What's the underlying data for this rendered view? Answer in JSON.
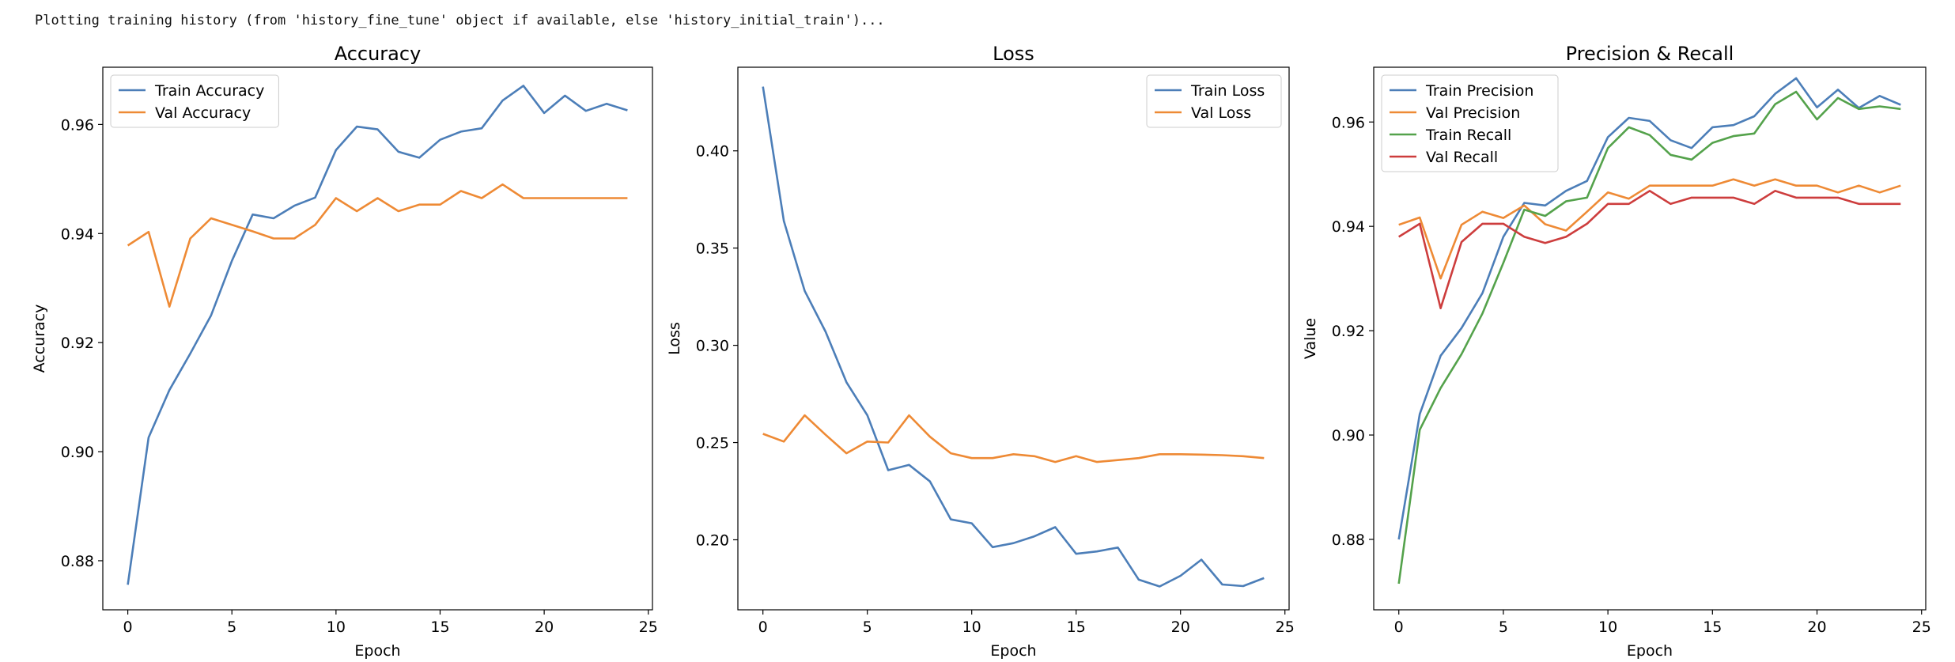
{
  "output_text": "Plotting training history (from 'history_fine_tune' object if available, else 'history_initial_train')...",
  "colors": {
    "blue": "#4c7eb8",
    "orange": "#ee8a35",
    "green": "#54a24b",
    "red": "#cd3d3d"
  },
  "chart_data": [
    {
      "type": "line",
      "title": "Accuracy",
      "xlabel": "Epoch",
      "ylabel": "Accuracy",
      "xlim": [
        -1.2,
        25.2
      ],
      "ylim": [
        0.871,
        0.9705
      ],
      "xticks": [
        "0",
        "5",
        "10",
        "15",
        "20",
        "25"
      ],
      "yticks": [
        "0.88",
        "0.90",
        "0.92",
        "0.94",
        "0.96"
      ],
      "legend": "top-left",
      "x": [
        0,
        1,
        2,
        3,
        4,
        5,
        6,
        7,
        8,
        9,
        10,
        11,
        12,
        13,
        14,
        15,
        16,
        17,
        18,
        19,
        20,
        21,
        22,
        23,
        24
      ],
      "series": [
        {
          "name": "Train Accuracy",
          "color": "blue",
          "values": [
            0.8756,
            0.9026,
            0.9113,
            0.918,
            0.925,
            0.935,
            0.9435,
            0.9428,
            0.9451,
            0.9466,
            0.9553,
            0.9596,
            0.9591,
            0.955,
            0.9539,
            0.9572,
            0.9587,
            0.9593,
            0.9644,
            0.9671,
            0.9621,
            0.9653,
            0.9625,
            0.9638,
            0.9626
          ]
        },
        {
          "name": "Val Accuracy",
          "color": "orange",
          "values": [
            0.9378,
            0.9403,
            0.9266,
            0.9391,
            0.9428,
            0.9416,
            0.9404,
            0.9391,
            0.9391,
            0.9416,
            0.9465,
            0.9441,
            0.9465,
            0.9441,
            0.9453,
            0.9453,
            0.9478,
            0.9465,
            0.949,
            0.9465,
            0.9465,
            0.9465,
            0.9465,
            0.9465,
            0.9465
          ]
        }
      ]
    },
    {
      "type": "line",
      "title": "Loss",
      "xlabel": "Epoch",
      "ylabel": "Loss",
      "xlim": [
        -1.2,
        25.2
      ],
      "ylim": [
        0.164,
        0.443
      ],
      "xticks": [
        "0",
        "5",
        "10",
        "15",
        "20",
        "25"
      ],
      "yticks": [
        "0.20",
        "0.25",
        "0.30",
        "0.35",
        "0.40"
      ],
      "legend": "top-right",
      "x": [
        0,
        1,
        2,
        3,
        4,
        5,
        6,
        7,
        8,
        9,
        10,
        11,
        12,
        13,
        14,
        15,
        16,
        17,
        18,
        19,
        20,
        21,
        22,
        23,
        24
      ],
      "series": [
        {
          "name": "Train Loss",
          "color": "blue",
          "values": [
            0.433,
            0.364,
            0.328,
            0.307,
            0.281,
            0.264,
            0.2358,
            0.2385,
            0.23,
            0.2105,
            0.2085,
            0.1962,
            0.1983,
            0.2018,
            0.2065,
            0.1928,
            0.194,
            0.196,
            0.1795,
            0.176,
            0.1815,
            0.1898,
            0.177,
            0.1762,
            0.1803
          ]
        },
        {
          "name": "Val Loss",
          "color": "orange",
          "values": [
            0.2545,
            0.2505,
            0.264,
            0.254,
            0.2445,
            0.2505,
            0.25,
            0.264,
            0.253,
            0.2445,
            0.242,
            0.242,
            0.244,
            0.243,
            0.24,
            0.243,
            0.24,
            0.241,
            0.242,
            0.244,
            0.244,
            0.2438,
            0.2435,
            0.243,
            0.242
          ]
        }
      ]
    },
    {
      "type": "line",
      "title": "Precision & Recall",
      "xlabel": "Epoch",
      "ylabel": "Value",
      "xlim": [
        -1.2,
        25.2
      ],
      "ylim": [
        0.8665,
        0.9705
      ],
      "xticks": [
        "0",
        "5",
        "10",
        "15",
        "20",
        "25"
      ],
      "yticks": [
        "0.88",
        "0.90",
        "0.92",
        "0.94",
        "0.96"
      ],
      "legend": "top-left",
      "x": [
        0,
        1,
        2,
        3,
        4,
        5,
        6,
        7,
        8,
        9,
        10,
        11,
        12,
        13,
        14,
        15,
        16,
        17,
        18,
        19,
        20,
        21,
        22,
        23,
        24
      ],
      "series": [
        {
          "name": "Train Precision",
          "color": "blue",
          "values": [
            0.88,
            0.904,
            0.9152,
            0.9205,
            0.9272,
            0.938,
            0.9445,
            0.944,
            0.9468,
            0.9487,
            0.9571,
            0.9608,
            0.9602,
            0.9565,
            0.955,
            0.959,
            0.9594,
            0.9611,
            0.9654,
            0.9684,
            0.9628,
            0.9662,
            0.9627,
            0.965,
            0.9633
          ]
        },
        {
          "name": "Val Precision",
          "color": "orange",
          "values": [
            0.9403,
            0.9417,
            0.93,
            0.9403,
            0.9428,
            0.9416,
            0.944,
            0.9404,
            0.9392,
            0.9428,
            0.9465,
            0.9453,
            0.9478,
            0.9478,
            0.9478,
            0.9478,
            0.949,
            0.9478,
            0.949,
            0.9478,
            0.9478,
            0.9465,
            0.9478,
            0.9465,
            0.9478
          ]
        },
        {
          "name": "Train Recall",
          "color": "green",
          "values": [
            0.8715,
            0.901,
            0.909,
            0.9155,
            0.9233,
            0.933,
            0.9432,
            0.942,
            0.9448,
            0.9455,
            0.955,
            0.959,
            0.9575,
            0.9537,
            0.9528,
            0.956,
            0.9573,
            0.9578,
            0.9634,
            0.9658,
            0.9605,
            0.9646,
            0.9625,
            0.963,
            0.9625
          ]
        },
        {
          "name": "Val Recall",
          "color": "red",
          "values": [
            0.938,
            0.9405,
            0.9243,
            0.937,
            0.9405,
            0.9405,
            0.938,
            0.9368,
            0.938,
            0.9405,
            0.9443,
            0.9443,
            0.9468,
            0.9443,
            0.9455,
            0.9455,
            0.9455,
            0.9443,
            0.9468,
            0.9455,
            0.9455,
            0.9455,
            0.9443,
            0.9443,
            0.9443
          ]
        }
      ]
    }
  ]
}
